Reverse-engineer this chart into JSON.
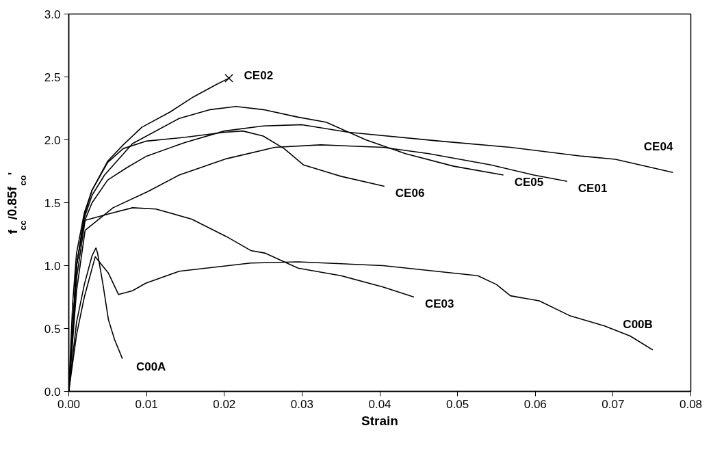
{
  "chart_data": {
    "type": "line",
    "xlabel": "Strain",
    "ylabel": "f$_{cc}$/0.85f$_{co}$'",
    "xlim": [
      0,
      0.08
    ],
    "ylim": [
      0,
      3.0
    ],
    "xticks": [
      {
        "value": 0,
        "label": "0.00"
      },
      0.01,
      0.02,
      0.03,
      0.04,
      0.05,
      0.06,
      0.07,
      0.08
    ],
    "yticks": [
      {
        "value": 0,
        "label": "0.0"
      },
      0.5,
      {
        "value": 1,
        "label": "1.0"
      },
      1.5,
      {
        "value": 2,
        "label": "2.0"
      },
      2.5,
      {
        "value": 3,
        "label": "3.0"
      }
    ],
    "grid": false,
    "line_style": "solid",
    "series": [
      {
        "name": "CE02",
        "color": "#000000",
        "x": [
          0,
          0.0005,
          0.001,
          0.002,
          0.003,
          0.005,
          0.007,
          0.0094,
          0.013,
          0.016,
          0.019,
          0.0206
        ],
        "values": [
          0,
          0.7,
          1.1,
          1.42,
          1.6,
          1.83,
          1.96,
          2.1,
          2.22,
          2.34,
          2.44,
          2.49
        ]
      },
      {
        "type": "scatter",
        "marker": "cross",
        "color": "#000000",
        "x": [
          0.0206
        ],
        "values": [
          2.49
        ]
      },
      {
        "name": "CE05",
        "color": "#000000",
        "x": [
          0,
          0.001,
          0.002,
          0.003,
          0.0046,
          0.0082,
          0.0142,
          0.0182,
          0.0215,
          0.025,
          0.0295,
          0.0331,
          0.0382,
          0.0433,
          0.0495,
          0.0559
        ],
        "values": [
          0,
          1.0,
          1.38,
          1.56,
          1.72,
          1.97,
          2.17,
          2.24,
          2.265,
          2.24,
          2.18,
          2.14,
          2.0,
          1.89,
          1.79,
          1.72
        ]
      },
      {
        "name": "CE04",
        "color": "#000000",
        "x": [
          0,
          0.001,
          0.002,
          0.003,
          0.005,
          0.0075,
          0.01,
          0.015,
          0.02,
          0.025,
          0.03,
          0.036,
          0.0477,
          0.0568,
          0.066,
          0.0703,
          0.0777
        ],
        "values": [
          0,
          1.0,
          1.35,
          1.5,
          1.68,
          1.78,
          1.87,
          1.98,
          2.07,
          2.11,
          2.12,
          2.06,
          1.99,
          1.94,
          1.87,
          1.845,
          1.74
        ]
      },
      {
        "name": "CE06",
        "color": "#000000",
        "x": [
          0,
          0.001,
          0.002,
          0.003,
          0.005,
          0.007,
          0.01,
          0.015,
          0.02,
          0.0224,
          0.025,
          0.0277,
          0.0302,
          0.035,
          0.0406
        ],
        "values": [
          0,
          1.0,
          1.4,
          1.6,
          1.82,
          1.93,
          1.99,
          2.02,
          2.06,
          2.07,
          2.03,
          1.93,
          1.8,
          1.71,
          1.63
        ]
      },
      {
        "name": "CE01",
        "color": "#000000",
        "x": [
          0,
          0.001,
          0.0021,
          0.0057,
          0.0102,
          0.0142,
          0.0203,
          0.0265,
          0.0324,
          0.0404,
          0.0463,
          0.0543,
          0.0598,
          0.0641
        ],
        "values": [
          0,
          0.8,
          1.28,
          1.46,
          1.59,
          1.72,
          1.85,
          1.94,
          1.96,
          1.94,
          1.89,
          1.8,
          1.72,
          1.67
        ]
      },
      {
        "name": "CE03",
        "color": "#000000",
        "x": [
          0,
          0.001,
          0.0021,
          0.0051,
          0.0082,
          0.0112,
          0.0158,
          0.0203,
          0.0234,
          0.0252,
          0.0295,
          0.035,
          0.0404,
          0.0444
        ],
        "values": [
          0,
          0.9,
          1.36,
          1.41,
          1.46,
          1.45,
          1.37,
          1.23,
          1.12,
          1.1,
          0.98,
          0.92,
          0.83,
          0.75
        ]
      },
      {
        "name": "C00A",
        "color": "#000000",
        "x": [
          0,
          0.001,
          0.002,
          0.003,
          0.0035,
          0.0037,
          0.0044,
          0.0051,
          0.0059,
          0.0069
        ],
        "values": [
          0,
          0.55,
          0.85,
          1.08,
          1.14,
          1.1,
          0.85,
          0.57,
          0.41,
          0.26
        ]
      },
      {
        "name": "C00B",
        "color": "#000000",
        "x": [
          0,
          0.001,
          0.002,
          0.0034,
          0.0051,
          0.0064,
          0.0082,
          0.0099,
          0.0142,
          0.0234,
          0.0295,
          0.0404,
          0.0526,
          0.055,
          0.0568,
          0.0605,
          0.0645,
          0.0689,
          0.0722,
          0.0751
        ],
        "values": [
          0,
          0.45,
          0.75,
          1.07,
          0.94,
          0.77,
          0.8,
          0.86,
          0.955,
          1.02,
          1.03,
          1.0,
          0.92,
          0.85,
          0.76,
          0.72,
          0.6,
          0.52,
          0.44,
          0.33
        ]
      }
    ]
  }
}
